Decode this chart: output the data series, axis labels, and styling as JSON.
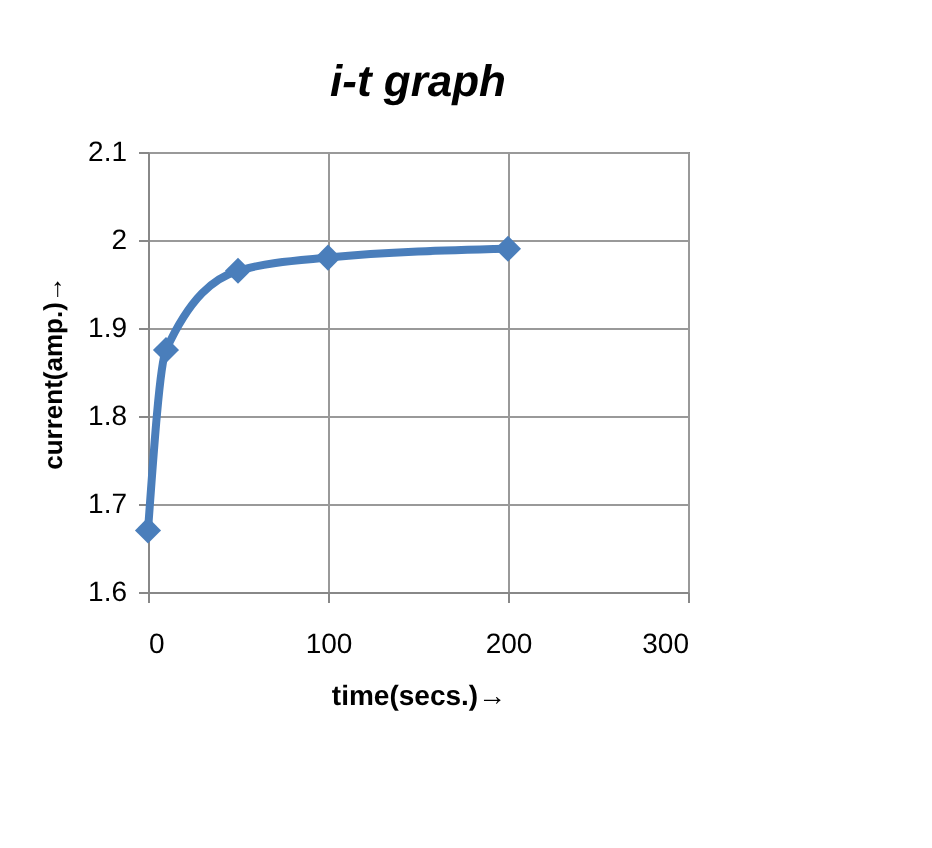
{
  "chart_data": {
    "type": "line",
    "title": "i-t graph",
    "xlabel": "time(secs.)→",
    "ylabel": "current(amp.)→",
    "x": [
      0,
      10,
      50,
      100,
      200
    ],
    "series": [
      {
        "color": "#4a7ebb",
        "values": [
          1.67,
          1.875,
          1.965,
          1.98,
          1.99
        ]
      }
    ],
    "xlim": [
      0,
      300
    ],
    "xticks": [
      0,
      100,
      200,
      300
    ],
    "ylim": [
      1.6,
      2.1
    ],
    "yticks": [
      1.6,
      1.7,
      1.8,
      1.9,
      2,
      2.1
    ],
    "grid": true,
    "marker": "diamond",
    "line_style": "solid"
  }
}
